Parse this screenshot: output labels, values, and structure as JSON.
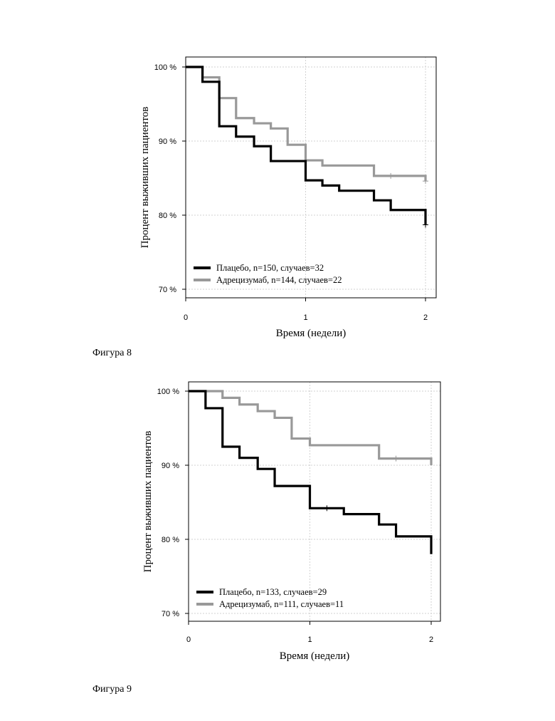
{
  "colors": {
    "placebo": "#000000",
    "treatment": "#999999",
    "grid": "#d2d2d2",
    "frame": "#000000"
  },
  "captions": [
    "Фигура 8",
    "Фигура 9"
  ],
  "chart_data": [
    {
      "type": "line",
      "xlabel": "Время (недели)",
      "ylabel": "Процент выживших пациентов",
      "xlim": [
        0,
        2.07
      ],
      "ylim": [
        69,
        101.2
      ],
      "x_ticks": [
        0,
        1,
        2
      ],
      "x_tick_labels": [
        "0",
        "1",
        "2"
      ],
      "y_ticks": [
        70,
        80,
        90,
        100
      ],
      "y_tick_labels": [
        "70 %",
        "80 %",
        "90 %",
        "100 %"
      ],
      "grid": true,
      "legend_position": "bottom-left",
      "series": [
        {
          "name": "Плацебо, n=150, случаев=32",
          "color": "placebo",
          "x": [
            0,
            0.14,
            0.28,
            0.42,
            0.57,
            0.71,
            1.0,
            1.14,
            1.28,
            1.57,
            1.71,
            2.0
          ],
          "y": [
            100,
            98,
            92,
            90.6,
            89.3,
            87.3,
            84.7,
            84,
            83.3,
            82,
            80.7,
            78.7
          ],
          "censored": [
            {
              "x": 2.0,
              "y": 78.7
            }
          ]
        },
        {
          "name": "Адрецизумаб, n=144, случаев=22",
          "color": "treatment",
          "x": [
            0,
            0.14,
            0.28,
            0.42,
            0.57,
            0.71,
            0.85,
            1.0,
            1.14,
            1.57,
            2.0
          ],
          "y": [
            100,
            98.6,
            95.8,
            93.1,
            92.4,
            91.7,
            89.5,
            87.4,
            86.7,
            85.3,
            84.6
          ],
          "censored": [
            {
              "x": 1.71,
              "y": 85.3
            },
            {
              "x": 2.0,
              "y": 84.6
            }
          ]
        }
      ]
    },
    {
      "type": "line",
      "xlabel": "Время (недели)",
      "ylabel": "Процент выживших пациентов",
      "xlim": [
        0,
        2.08
      ],
      "ylim": [
        69,
        100.8
      ],
      "x_ticks": [
        0,
        1,
        2
      ],
      "x_tick_labels": [
        "0",
        "1",
        "2"
      ],
      "y_ticks": [
        70,
        80,
        90,
        100
      ],
      "y_tick_labels": [
        "70 %",
        "80 %",
        "90 %",
        "100 %"
      ],
      "grid": true,
      "legend_position": "bottom-left",
      "series": [
        {
          "name": "Плацебо, n=133, случаев=29",
          "color": "placebo",
          "x": [
            0,
            0.14,
            0.28,
            0.42,
            0.57,
            0.71,
            1.0,
            1.28,
            1.57,
            1.71,
            2.0
          ],
          "y": [
            100,
            97.7,
            92.5,
            91,
            89.5,
            87.2,
            84.2,
            83.4,
            82,
            80.4,
            78
          ],
          "censored": [
            {
              "x": 1.14,
              "y": 84.2
            }
          ]
        },
        {
          "name": "Адрецизумаб, n=111, случаев=11",
          "color": "treatment",
          "x": [
            0,
            0.28,
            0.42,
            0.57,
            0.71,
            0.85,
            1.0,
            1.57,
            2.0
          ],
          "y": [
            100,
            99.1,
            98.2,
            97.3,
            96.4,
            93.6,
            92.7,
            90.9,
            90
          ],
          "censored": [
            {
              "x": 1.71,
              "y": 90.9
            }
          ]
        }
      ]
    }
  ]
}
